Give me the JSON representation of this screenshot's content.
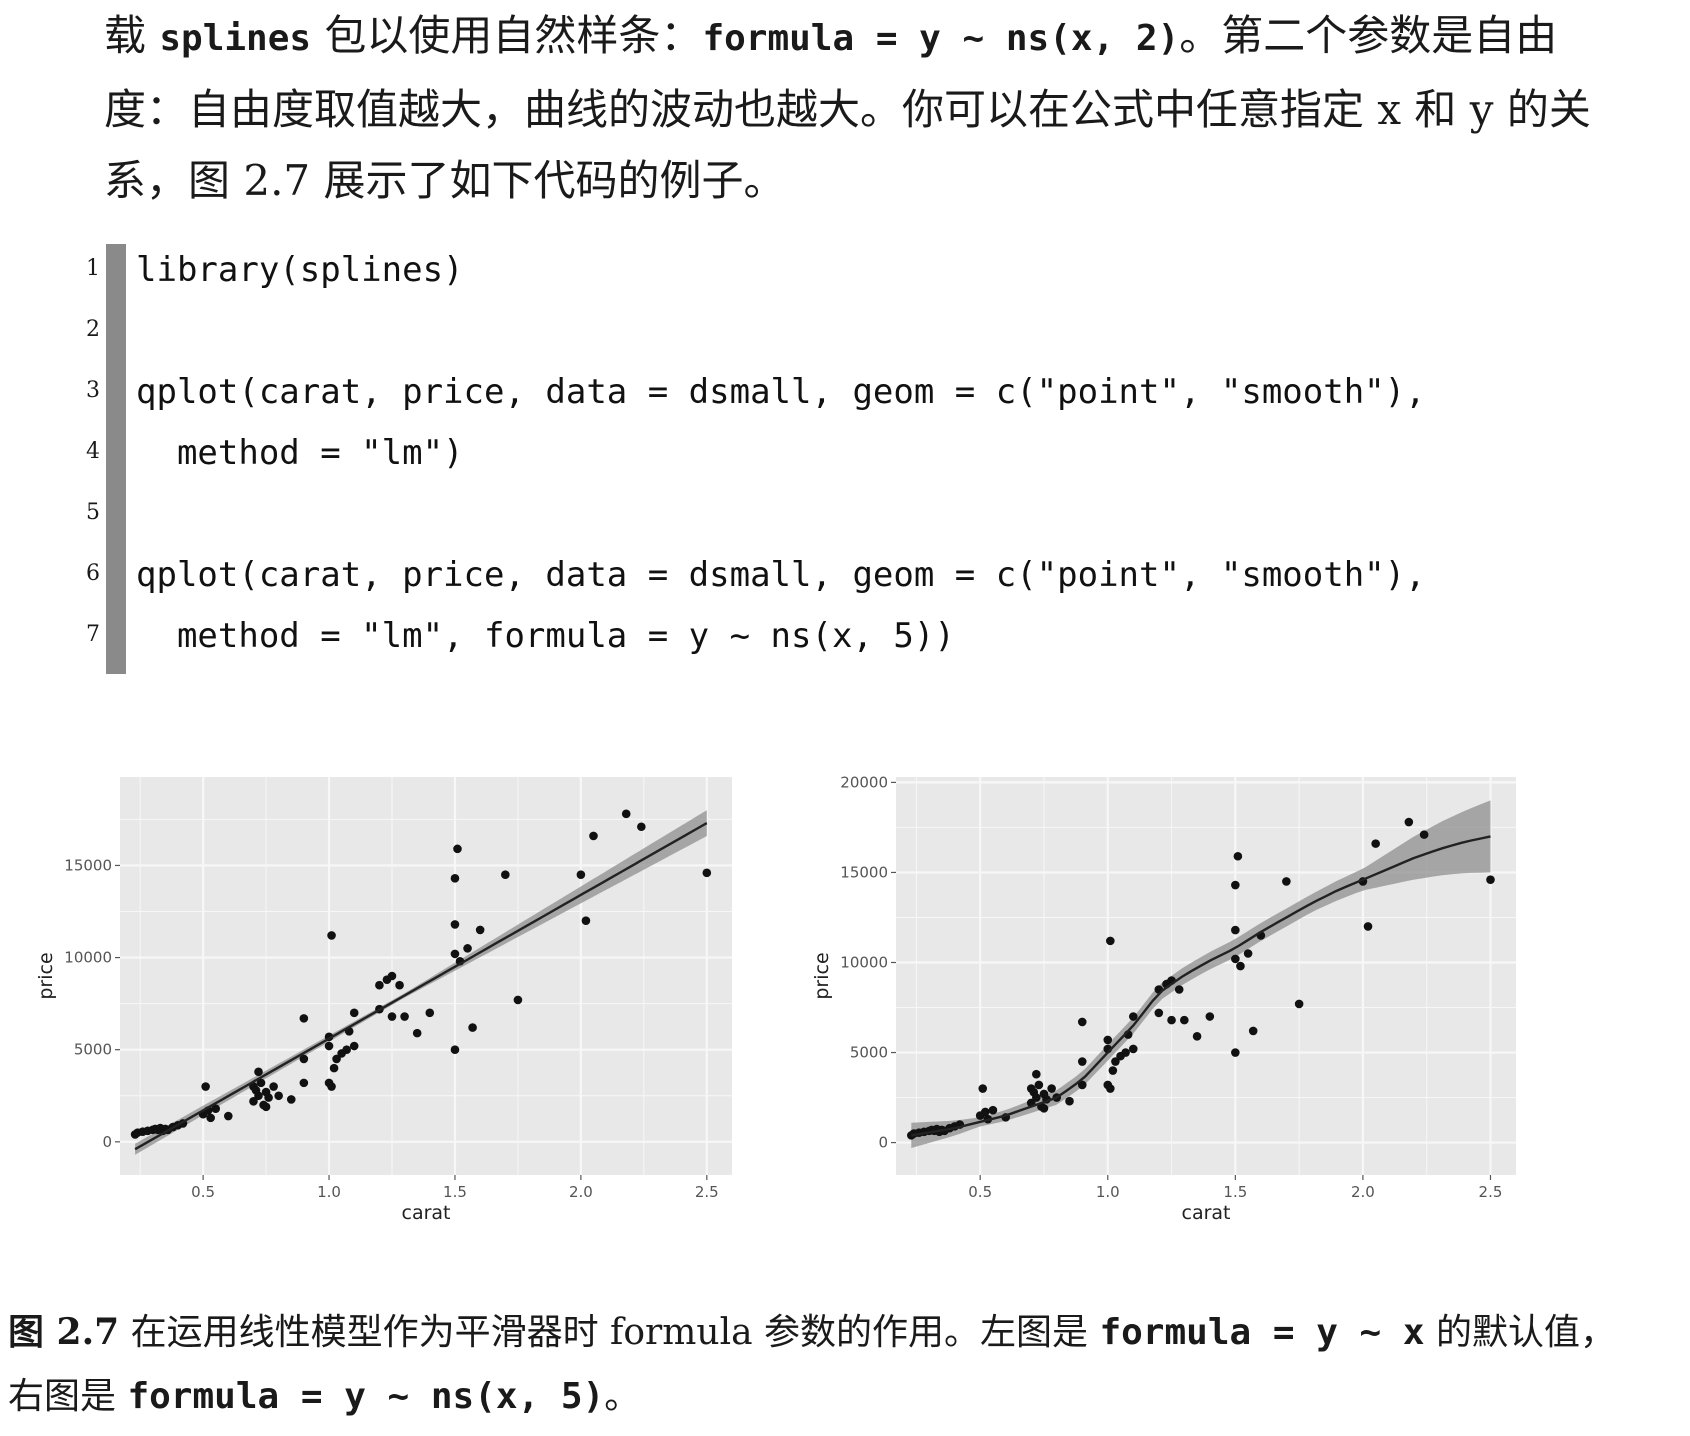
{
  "intro": {
    "p1": "载 ",
    "p1_code": "splines",
    "p2": " 包以使用自然样条：",
    "p2_code": "formula = y ~ ns(x, 2)",
    "p3": "。第二个参数是自由度：自由度取值越大，曲线的波动也越大。你可以在公式中任意指定 x 和 y 的关系，图 2.7 展示了如下代码的例子。"
  },
  "code": {
    "lines": [
      {
        "num": "1",
        "text": "library(splines)"
      },
      {
        "num": "2",
        "text": ""
      },
      {
        "num": "3",
        "text": "qplot(carat, price, data = dsmall, geom = c(\"point\", \"smooth\"),"
      },
      {
        "num": "4",
        "text": "  method = \"lm\")"
      },
      {
        "num": "5",
        "text": ""
      },
      {
        "num": "6",
        "text": "qplot(carat, price, data = dsmall, geom = c(\"point\", \"smooth\"),"
      },
      {
        "num": "7",
        "text": "  method = \"lm\", formula = y ~ ns(x, 5))"
      }
    ]
  },
  "chart_data": [
    {
      "type": "scatter",
      "xlabel": "carat",
      "ylabel": "price",
      "xlim": [
        0.17,
        2.6
      ],
      "ylim": [
        -1800,
        19800
      ],
      "xticks": [
        0.5,
        1.0,
        1.5,
        2.0,
        2.5
      ],
      "xtick_labels": [
        "0.5",
        "1.0",
        "1.5",
        "2.0",
        "2.5"
      ],
      "yticks": [
        0,
        5000,
        10000,
        15000
      ],
      "ytick_labels": [
        "0",
        "5000",
        "10000",
        "15000"
      ],
      "grid": true,
      "fit": {
        "method": "lm",
        "formula": "y ~ x",
        "line": [
          [
            0.23,
            -400
          ],
          [
            2.5,
            17300
          ]
        ],
        "band_halfwidth": [
          [
            0.23,
            300
          ],
          [
            1.3,
            120
          ],
          [
            2.5,
            700
          ]
        ]
      },
      "points": [
        [
          0.23,
          400
        ],
        [
          0.24,
          500
        ],
        [
          0.26,
          550
        ],
        [
          0.28,
          600
        ],
        [
          0.3,
          650
        ],
        [
          0.31,
          700
        ],
        [
          0.32,
          650
        ],
        [
          0.33,
          750
        ],
        [
          0.34,
          600
        ],
        [
          0.35,
          700
        ],
        [
          0.36,
          650
        ],
        [
          0.38,
          800
        ],
        [
          0.4,
          900
        ],
        [
          0.42,
          1000
        ],
        [
          0.5,
          1500
        ],
        [
          0.52,
          1700
        ],
        [
          0.51,
          3000
        ],
        [
          0.53,
          1300
        ],
        [
          0.55,
          1800
        ],
        [
          0.6,
          1400
        ],
        [
          0.7,
          3000
        ],
        [
          0.71,
          2800
        ],
        [
          0.72,
          2500
        ],
        [
          0.7,
          2200
        ],
        [
          0.73,
          3200
        ],
        [
          0.74,
          2000
        ],
        [
          0.75,
          2700
        ],
        [
          0.72,
          3800
        ],
        [
          0.76,
          2400
        ],
        [
          0.78,
          3000
        ],
        [
          0.8,
          2500
        ],
        [
          0.85,
          2300
        ],
        [
          0.75,
          1900
        ],
        [
          0.9,
          3200
        ],
        [
          0.9,
          4500
        ],
        [
          0.9,
          6700
        ],
        [
          1.0,
          5200
        ],
        [
          1.0,
          5700
        ],
        [
          1.0,
          3200
        ],
        [
          1.01,
          11200
        ],
        [
          1.02,
          4000
        ],
        [
          1.03,
          4500
        ],
        [
          1.05,
          4800
        ],
        [
          1.07,
          5000
        ],
        [
          1.08,
          6000
        ],
        [
          1.1,
          5200
        ],
        [
          1.1,
          7000
        ],
        [
          1.01,
          3000
        ],
        [
          1.2,
          7200
        ],
        [
          1.2,
          8500
        ],
        [
          1.23,
          8800
        ],
        [
          1.25,
          9000
        ],
        [
          1.25,
          6800
        ],
        [
          1.28,
          8500
        ],
        [
          1.3,
          6800
        ],
        [
          1.35,
          5900
        ],
        [
          1.4,
          7000
        ],
        [
          1.5,
          14300
        ],
        [
          1.51,
          15900
        ],
        [
          1.5,
          11800
        ],
        [
          1.5,
          10200
        ],
        [
          1.5,
          5000
        ],
        [
          1.52,
          9800
        ],
        [
          1.55,
          10500
        ],
        [
          1.57,
          6200
        ],
        [
          1.6,
          11500
        ],
        [
          1.7,
          14500
        ],
        [
          1.75,
          7700
        ],
        [
          2.0,
          14500
        ],
        [
          2.02,
          12000
        ],
        [
          2.05,
          16600
        ],
        [
          2.18,
          17800
        ],
        [
          2.24,
          17100
        ],
        [
          2.5,
          14600
        ]
      ]
    },
    {
      "type": "scatter",
      "xlabel": "carat",
      "ylabel": "price",
      "xlim": [
        0.17,
        2.6
      ],
      "ylim": [
        -1800,
        20300
      ],
      "xticks": [
        0.5,
        1.0,
        1.5,
        2.0,
        2.5
      ],
      "xtick_labels": [
        "0.5",
        "1.0",
        "1.5",
        "2.0",
        "2.5"
      ],
      "yticks": [
        0,
        5000,
        10000,
        15000,
        20000
      ],
      "ytick_labels": [
        "0",
        "5000",
        "10000",
        "15000",
        "20000"
      ],
      "grid": true,
      "fit": {
        "method": "lm",
        "formula": "y ~ ns(x, 5)",
        "line": [
          [
            0.23,
            400
          ],
          [
            0.4,
            800
          ],
          [
            0.6,
            1500
          ],
          [
            0.8,
            2500
          ],
          [
            0.9,
            3500
          ],
          [
            1.0,
            5000
          ],
          [
            1.1,
            6500
          ],
          [
            1.2,
            8300
          ],
          [
            1.3,
            9300
          ],
          [
            1.4,
            10100
          ],
          [
            1.5,
            10800
          ],
          [
            1.6,
            11700
          ],
          [
            1.7,
            12500
          ],
          [
            1.8,
            13300
          ],
          [
            1.9,
            14000
          ],
          [
            2.0,
            14600
          ],
          [
            2.1,
            15200
          ],
          [
            2.2,
            15800
          ],
          [
            2.3,
            16300
          ],
          [
            2.4,
            16700
          ],
          [
            2.5,
            17000
          ]
        ],
        "band_halfwidth": [
          [
            0.23,
            700
          ],
          [
            0.5,
            250
          ],
          [
            0.8,
            400
          ],
          [
            1.0,
            450
          ],
          [
            1.2,
            450
          ],
          [
            1.5,
            500
          ],
          [
            1.8,
            500
          ],
          [
            2.0,
            600
          ],
          [
            2.2,
            1200
          ],
          [
            2.5,
            2000
          ]
        ]
      },
      "points": [
        [
          0.23,
          400
        ],
        [
          0.24,
          500
        ],
        [
          0.26,
          550
        ],
        [
          0.28,
          600
        ],
        [
          0.3,
          650
        ],
        [
          0.31,
          700
        ],
        [
          0.32,
          650
        ],
        [
          0.33,
          750
        ],
        [
          0.34,
          600
        ],
        [
          0.35,
          700
        ],
        [
          0.36,
          650
        ],
        [
          0.38,
          800
        ],
        [
          0.4,
          900
        ],
        [
          0.42,
          1000
        ],
        [
          0.5,
          1500
        ],
        [
          0.52,
          1700
        ],
        [
          0.51,
          3000
        ],
        [
          0.53,
          1300
        ],
        [
          0.55,
          1800
        ],
        [
          0.6,
          1400
        ],
        [
          0.7,
          3000
        ],
        [
          0.71,
          2800
        ],
        [
          0.72,
          2500
        ],
        [
          0.7,
          2200
        ],
        [
          0.73,
          3200
        ],
        [
          0.74,
          2000
        ],
        [
          0.75,
          2700
        ],
        [
          0.72,
          3800
        ],
        [
          0.76,
          2400
        ],
        [
          0.78,
          3000
        ],
        [
          0.8,
          2500
        ],
        [
          0.85,
          2300
        ],
        [
          0.75,
          1900
        ],
        [
          0.9,
          3200
        ],
        [
          0.9,
          4500
        ],
        [
          0.9,
          6700
        ],
        [
          1.0,
          5200
        ],
        [
          1.0,
          5700
        ],
        [
          1.0,
          3200
        ],
        [
          1.01,
          11200
        ],
        [
          1.02,
          4000
        ],
        [
          1.03,
          4500
        ],
        [
          1.05,
          4800
        ],
        [
          1.07,
          5000
        ],
        [
          1.08,
          6000
        ],
        [
          1.1,
          5200
        ],
        [
          1.1,
          7000
        ],
        [
          1.01,
          3000
        ],
        [
          1.2,
          7200
        ],
        [
          1.2,
          8500
        ],
        [
          1.23,
          8800
        ],
        [
          1.25,
          9000
        ],
        [
          1.25,
          6800
        ],
        [
          1.28,
          8500
        ],
        [
          1.3,
          6800
        ],
        [
          1.35,
          5900
        ],
        [
          1.4,
          7000
        ],
        [
          1.5,
          14300
        ],
        [
          1.51,
          15900
        ],
        [
          1.5,
          11800
        ],
        [
          1.5,
          10200
        ],
        [
          1.5,
          5000
        ],
        [
          1.52,
          9800
        ],
        [
          1.55,
          10500
        ],
        [
          1.57,
          6200
        ],
        [
          1.6,
          11500
        ],
        [
          1.7,
          14500
        ],
        [
          1.75,
          7700
        ],
        [
          2.0,
          14500
        ],
        [
          2.02,
          12000
        ],
        [
          2.05,
          16600
        ],
        [
          2.18,
          17800
        ],
        [
          2.24,
          17100
        ],
        [
          2.5,
          14600
        ]
      ]
    }
  ],
  "caption": {
    "fig_label": "图 2.7",
    "c1": " 在运用线性模型作为平滑器时 formula 参数的作用。左图是 ",
    "c1_code": "formula = y ~ x",
    "c2": " 的默认值，右图是 ",
    "c2_code": "formula = y ~ ns(x, 5)",
    "c3": "。"
  },
  "colors": {
    "panel_bg": "#e8e8e8",
    "grid": "#f7f7f7",
    "band": "#8f8f8f",
    "line": "#222222",
    "point": "#111111"
  }
}
